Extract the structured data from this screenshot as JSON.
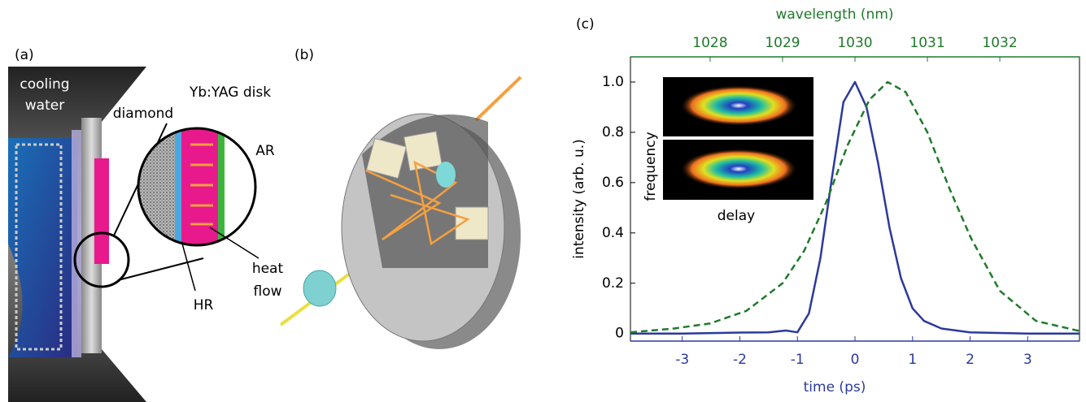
{
  "panel_a": {
    "label": "(a)",
    "texts": [
      "cooling",
      "water",
      "diamond",
      "Yb:YAG disk",
      "AR",
      "HR",
      "heat",
      "flow"
    ]
  },
  "panel_b": {
    "label": "(b)"
  },
  "panel_c": {
    "label": "(c)",
    "inset_labels": [
      "frequency",
      "delay"
    ]
  },
  "chart_data": {
    "type": "line",
    "xlabel": "time (ps)",
    "x2label": "wavelength (nm)",
    "ylabel": "intensity (arb. u.)",
    "xlim": [
      -3.9,
      3.9
    ],
    "xticks": [
      -3,
      -2,
      -1,
      0,
      1,
      2,
      3
    ],
    "x2lim": [
      1026.9,
      1033.1
    ],
    "x2ticks": [
      1028,
      1029,
      1030,
      1031,
      1032
    ],
    "ylim": [
      -0.03,
      1.1
    ],
    "yticks": [
      0,
      0.2,
      0.4,
      0.6,
      0.8,
      {
        "value": 1,
        "label": "1.0"
      }
    ],
    "series": [
      {
        "color": "#2b3a9c",
        "dash": "solid",
        "axis": "x",
        "x": [
          -3.9,
          -3,
          -2,
          -1.5,
          -1.2,
          -1,
          -0.8,
          -0.6,
          -0.4,
          -0.2,
          0,
          0.2,
          0.4,
          0.6,
          0.8,
          1,
          1.2,
          1.5,
          2,
          3,
          3.9
        ],
        "values": [
          0,
          0,
          0.004,
          0.005,
          0.012,
          0.005,
          0.08,
          0.3,
          0.62,
          0.92,
          1.0,
          0.9,
          0.68,
          0.42,
          0.22,
          0.1,
          0.05,
          0.02,
          0.005,
          0,
          0
        ]
      },
      {
        "color": "#1f7a2a",
        "dash": "dashed",
        "axis": "x2",
        "x": [
          1026.9,
          1027.5,
          1028,
          1028.5,
          1029,
          1029.3,
          1029.6,
          1029.9,
          1030.2,
          1030.45,
          1030.7,
          1031,
          1031.3,
          1031.6,
          1032,
          1032.5,
          1033.1
        ],
        "values": [
          0.005,
          0.02,
          0.04,
          0.09,
          0.2,
          0.33,
          0.52,
          0.75,
          0.93,
          1.0,
          0.96,
          0.8,
          0.58,
          0.38,
          0.17,
          0.05,
          0.01
        ]
      }
    ]
  }
}
